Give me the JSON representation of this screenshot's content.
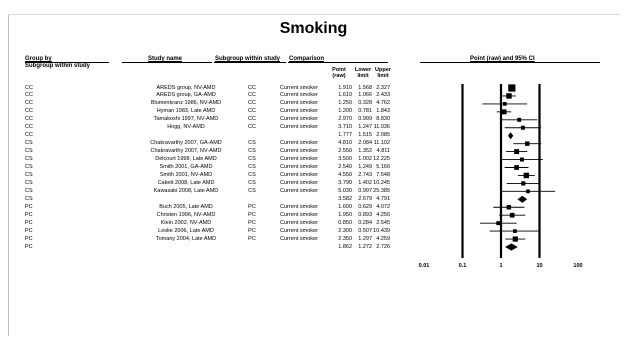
{
  "chart_data": {
    "type": "forest",
    "title": "Smoking",
    "columns": {
      "group_by": "Group by",
      "subgroup_within_study": "Subgroup within study",
      "study_name": "Study name",
      "subgroup_col": "Subgroup within study",
      "comparison": "Comparison",
      "point": "Point",
      "point_sub": "(raw)",
      "lower": "Lower",
      "lower_sub": "limit",
      "upper": "Upper",
      "upper_sub": "limit",
      "plot": "Point (raw) and 95% CI"
    },
    "x_axis": {
      "scale": "log",
      "ticks": [
        {
          "value": 0.01,
          "label": "0.01"
        },
        {
          "value": 0.1,
          "label": "0.1"
        },
        {
          "value": 1,
          "label": "1"
        },
        {
          "value": 10,
          "label": "10"
        },
        {
          "value": 100,
          "label": "100"
        }
      ],
      "xlim": [
        0.01,
        100
      ]
    },
    "rows": [
      {
        "group": "CC",
        "study": "AREDS group, NV-AMD",
        "subgroup": "CC",
        "comparison": "Current smoker",
        "point": "1.910",
        "lower": "1.568",
        "upper": "2.327",
        "summary": false,
        "weight": 1.0
      },
      {
        "group": "CC",
        "study": "AREDS group, GA-AMD",
        "subgroup": "CC",
        "comparison": "Current smoker",
        "point": "1.610",
        "lower": "1.066",
        "upper": "2.433",
        "summary": false,
        "weight": 0.65
      },
      {
        "group": "CC",
        "study": "Blumenkranz 1986, NV-AMD",
        "subgroup": "CC",
        "comparison": "Current smoker",
        "point": "1.250",
        "lower": "0.328",
        "upper": "4.762",
        "summary": false,
        "weight": 0.3
      },
      {
        "group": "CC",
        "study": "Hyman 1983, Late AMD",
        "subgroup": "CC",
        "comparison": "Current smoker",
        "point": "1.200",
        "lower": "0.781",
        "upper": "1.843",
        "summary": false,
        "weight": 0.55
      },
      {
        "group": "CC",
        "study": "Tamakoshi 1997, NV-AMD",
        "subgroup": "CC",
        "comparison": "Current smoker",
        "point": "2.970",
        "lower": "0.999",
        "upper": "8.830",
        "summary": false,
        "weight": 0.35
      },
      {
        "group": "CC",
        "study": "Hogg, NV-AMD",
        "subgroup": "CC",
        "comparison": "Current smoker",
        "point": "3.710",
        "lower": "1.247",
        "upper": "11.036",
        "summary": false,
        "weight": 0.35
      },
      {
        "group": "CC",
        "study": "",
        "subgroup": "",
        "comparison": "",
        "point": "1.777",
        "lower": "1.515",
        "upper": "2.085",
        "summary": true,
        "weight": 0.6
      },
      {
        "group": "CS",
        "study": "Chakravarthy 2007, GA-AMD",
        "subgroup": "CS",
        "comparison": "Current smoker",
        "point": "4.810",
        "lower": "2.084",
        "upper": "11.102",
        "summary": false,
        "weight": 0.45
      },
      {
        "group": "CS",
        "study": "Chakravarthy 2007, NV-AMD",
        "subgroup": "CS",
        "comparison": "Current smoker",
        "point": "2.550",
        "lower": "1.352",
        "upper": "4.811",
        "summary": false,
        "weight": 0.55
      },
      {
        "group": "CS",
        "study": "Delcourt 1998, Late AMD",
        "subgroup": "CS",
        "comparison": "Current smoker",
        "point": "3.500",
        "lower": "1.002",
        "upper": "12.225",
        "summary": false,
        "weight": 0.35
      },
      {
        "group": "CS",
        "study": "Smith 2001, GA-AMD",
        "subgroup": "CS",
        "comparison": "Current smoker",
        "point": "2.540",
        "lower": "1.249",
        "upper": "5.166",
        "summary": false,
        "weight": 0.5
      },
      {
        "group": "CS",
        "study": "Smith 2001, NV-AMD",
        "subgroup": "CS",
        "comparison": "Current smoker",
        "point": "4.550",
        "lower": "2.743",
        "upper": "7.548",
        "summary": false,
        "weight": 0.65
      },
      {
        "group": "CS",
        "study": "Cakett 2008, Late AMD",
        "subgroup": "CS",
        "comparison": "Current smoker",
        "point": "3.790",
        "lower": "1.402",
        "upper": "10.245",
        "summary": false,
        "weight": 0.4
      },
      {
        "group": "CS",
        "study": "Kawasaki 2008, Late AMD",
        "subgroup": "CS",
        "comparison": "Current smoker",
        "point": "5.030",
        "lower": "0.997",
        "upper": "25.385",
        "summary": false,
        "weight": 0.3
      },
      {
        "group": "CS",
        "study": "",
        "subgroup": "",
        "comparison": "",
        "point": "3.582",
        "lower": "2.679",
        "upper": "4.791",
        "summary": true,
        "weight": 0.8
      },
      {
        "group": "PC",
        "study": "Buch 2005, Late AMD",
        "subgroup": "PC",
        "comparison": "Current smoker",
        "point": "1.600",
        "lower": "0.629",
        "upper": "4.072",
        "summary": false,
        "weight": 0.45
      },
      {
        "group": "PC",
        "study": "Christen 1996, NV-AMD",
        "subgroup": "PC",
        "comparison": "Current smoker",
        "point": "1.950",
        "lower": "0.893",
        "upper": "4.256",
        "summary": false,
        "weight": 0.5
      },
      {
        "group": "PC",
        "study": "Klein 2002, NV-AMD",
        "subgroup": "PC",
        "comparison": "Current smoker",
        "point": "0.850",
        "lower": "0.284",
        "upper": "2.545",
        "summary": false,
        "weight": 0.35
      },
      {
        "group": "PC",
        "study": "Leske 2006, Late AMD",
        "subgroup": "PC",
        "comparison": "Current smoker",
        "point": "2.300",
        "lower": "0.507",
        "upper": "10.439",
        "summary": false,
        "weight": 0.3
      },
      {
        "group": "PC",
        "study": "Tomany 2004, Late AMD",
        "subgroup": "PC",
        "comparison": "Current smoker",
        "point": "2.350",
        "lower": "1.297",
        "upper": "4.259",
        "summary": false,
        "weight": 0.6
      },
      {
        "group": "PC",
        "study": "",
        "subgroup": "",
        "comparison": "",
        "point": "1.862",
        "lower": "1.272",
        "upper": "2.726",
        "summary": true,
        "weight": 0.8
      }
    ]
  }
}
